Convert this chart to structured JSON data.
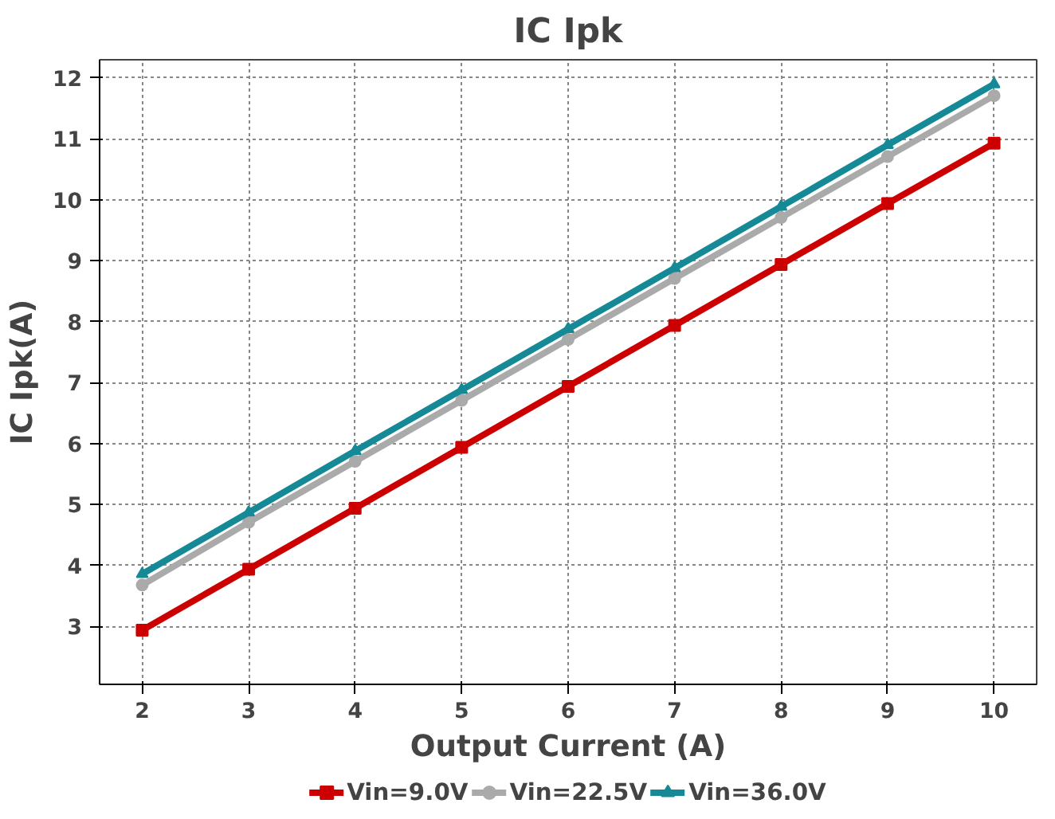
{
  "chart_data": {
    "type": "line",
    "title": "IC Ipk",
    "xlabel": "Output Current (A)",
    "ylabel": "IC Ipk(A)",
    "x": [
      2,
      3,
      4,
      5,
      6,
      7,
      8,
      9,
      10
    ],
    "series": [
      {
        "name": "Vin=9.0V",
        "color": "#cc0000",
        "marker": "square",
        "values": [
          2.94,
          3.94,
          4.94,
          5.94,
          6.94,
          7.94,
          8.94,
          9.94,
          10.93
        ]
      },
      {
        "name": "Vin=22.5V",
        "color": "#aaaaaa",
        "marker": "circle",
        "values": [
          3.68,
          4.71,
          5.71,
          6.71,
          7.71,
          8.71,
          9.71,
          10.71,
          11.71
        ]
      },
      {
        "name": "Vin=36.0V",
        "color": "#158a96",
        "marker": "triangle",
        "values": [
          3.86,
          4.87,
          5.88,
          6.88,
          7.88,
          8.88,
          9.89,
          10.9,
          11.9
        ]
      }
    ],
    "xlim": [
      1.6,
      10.4
    ],
    "ylim": [
      2.05,
      12.3
    ],
    "xticks": [
      2,
      3,
      4,
      5,
      6,
      7,
      8,
      9,
      10
    ],
    "yticks": [
      3,
      4,
      5,
      6,
      7,
      8,
      9,
      10,
      11,
      12
    ],
    "grid": true,
    "legend": "bottom",
    "line_style": "solid"
  }
}
